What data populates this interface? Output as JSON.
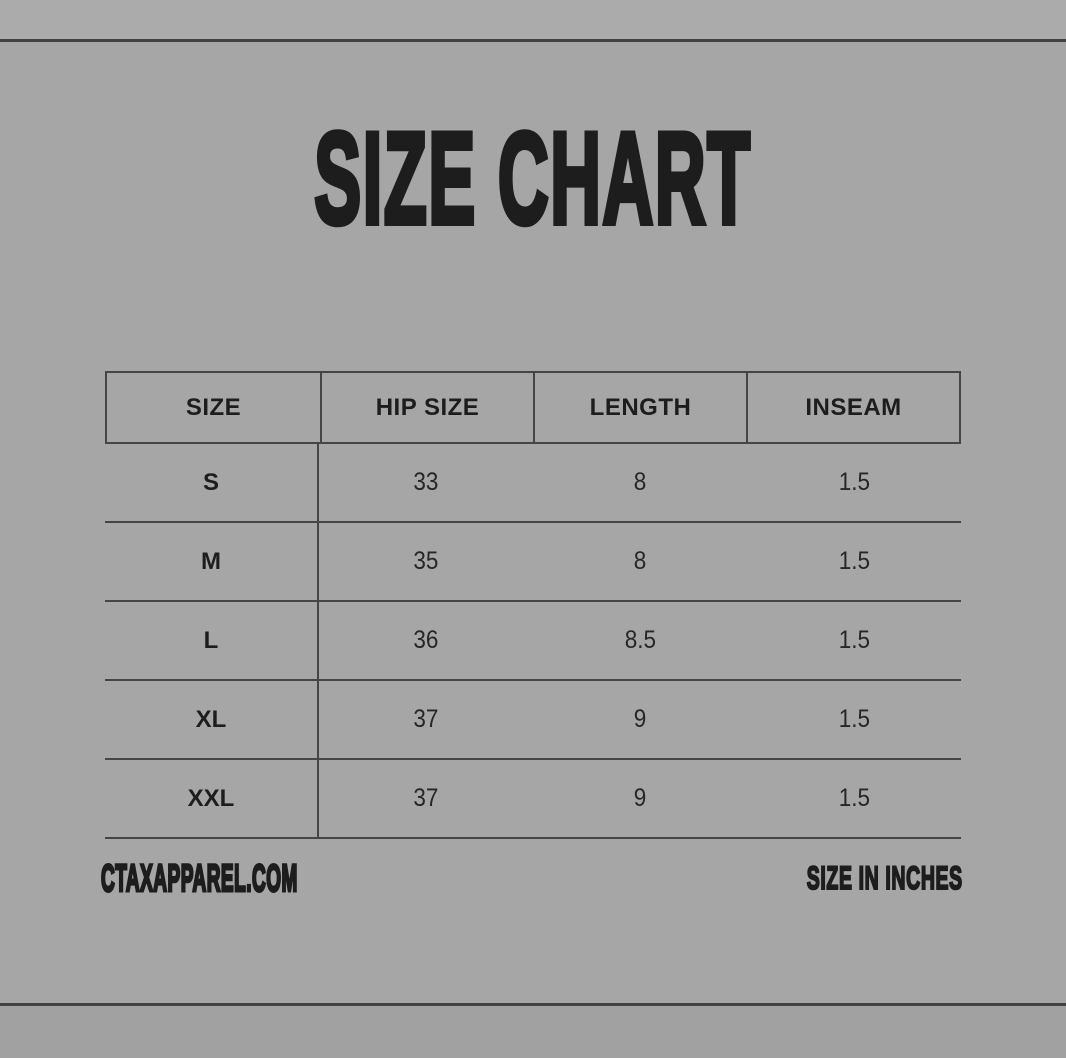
{
  "canvas": {
    "background": "#a6a6a6",
    "top_strip": "#ababab",
    "bottom_strip": "#a1a1a1",
    "rule_color": "#424242",
    "table_line_color": "#454545",
    "text_color": "#1d1d1d",
    "value_color": "#262626"
  },
  "title": {
    "text": "SIZE CHART"
  },
  "table": {
    "headers": [
      "SIZE",
      "HIP SIZE",
      "LENGTH",
      "INSEAM"
    ],
    "rows": [
      {
        "size": "S",
        "hip": "33",
        "length": "8",
        "inseam": "1.5"
      },
      {
        "size": "M",
        "hip": "35",
        "length": "8",
        "inseam": "1.5"
      },
      {
        "size": "L",
        "hip": "36",
        "length": "8.5",
        "inseam": "1.5"
      },
      {
        "size": "XL",
        "hip": "37",
        "length": "9",
        "inseam": "1.5"
      },
      {
        "size": "XXL",
        "hip": "37",
        "length": "9",
        "inseam": "1.5"
      }
    ]
  },
  "footer": {
    "website": "CTAXAPPAREL.COM",
    "units_note": "SIZE IN INCHES"
  },
  "chart_data": {
    "type": "table",
    "title": "SIZE CHART",
    "columns": [
      "SIZE",
      "HIP SIZE",
      "LENGTH",
      "INSEAM"
    ],
    "rows": [
      [
        "S",
        33,
        8,
        1.5
      ],
      [
        "M",
        35,
        8,
        1.5
      ],
      [
        "L",
        36,
        8.5,
        1.5
      ],
      [
        "XL",
        37,
        9,
        1.5
      ],
      [
        "XXL",
        37,
        9,
        1.5
      ]
    ],
    "units": "inches"
  }
}
